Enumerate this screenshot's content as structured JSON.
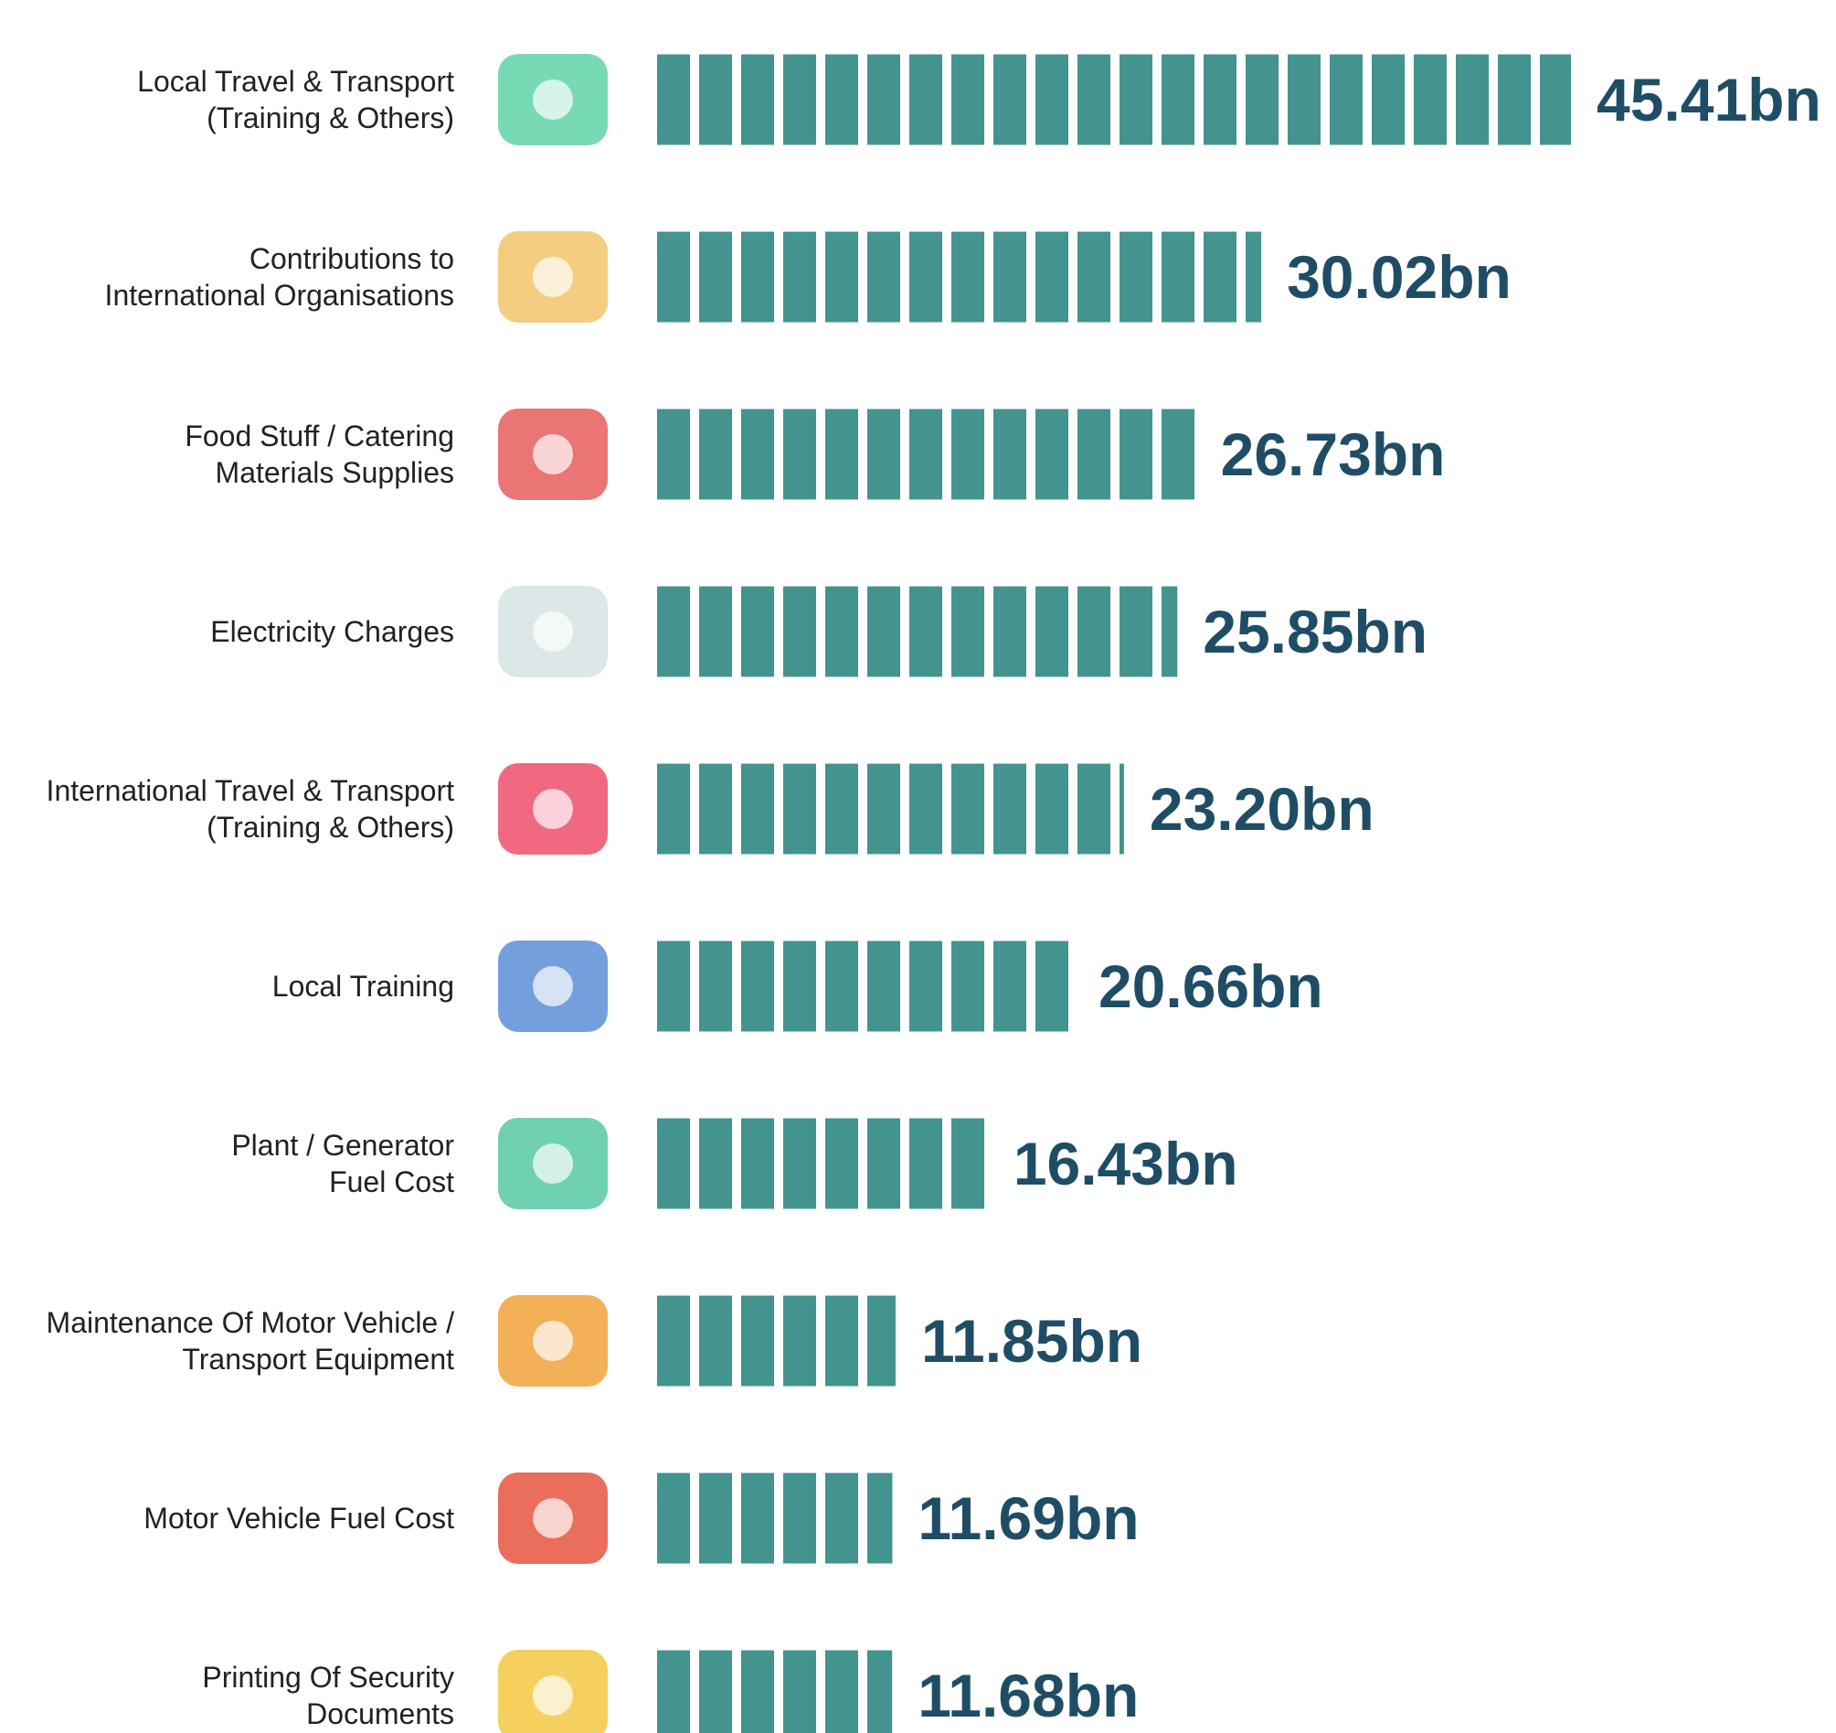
{
  "chart_data": {
    "type": "bar",
    "orientation": "horizontal",
    "color": "#43938f",
    "categories": [
      "Local Travel & Transport\n(Training & Others)",
      "Contributions to\nInternational Organisations",
      "Food Stuff / Catering\nMaterials Supplies",
      "Electricity Charges",
      "International Travel & Transport\n(Training & Others)",
      "Local Training",
      "Plant / Generator\nFuel Cost",
      "Maintenance Of Motor Vehicle /\nTransport Equipment",
      "Motor Vehicle Fuel Cost",
      "Printing Of Security\nDocuments"
    ],
    "values": [
      45.41,
      30.02,
      26.73,
      25.85,
      23.2,
      20.66,
      16.43,
      11.85,
      11.69,
      11.68
    ],
    "value_labels": [
      "45.41bn",
      "30.02bn",
      "26.73bn",
      "25.85bn",
      "23.20bn",
      "20.66bn",
      "16.43bn",
      "11.85bn",
      "11.69bn",
      "11.68bn"
    ]
  }
}
